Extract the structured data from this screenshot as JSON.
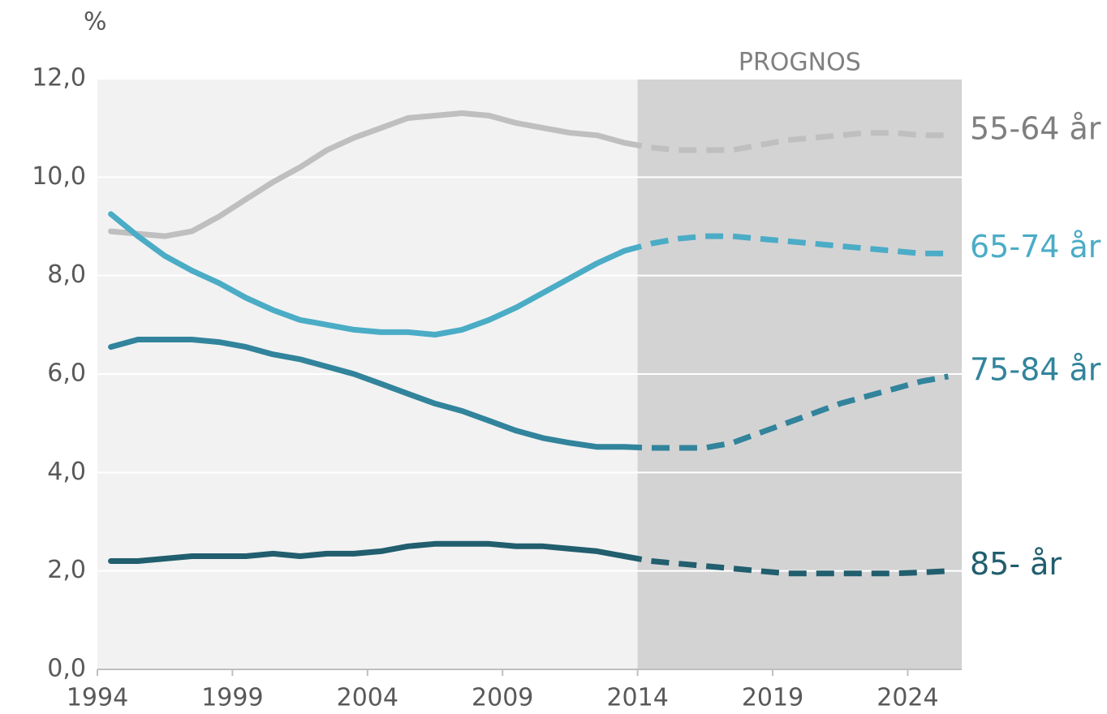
{
  "chart_data": {
    "type": "line",
    "title": "%",
    "annotation": "PROGNOS",
    "prognos_start": 2014,
    "prognos_color": "#d4d3d4",
    "plot_background": "#f2f2f2",
    "grid": true,
    "x": [
      1994.5,
      1995.5,
      1996.5,
      1997.5,
      1998.5,
      1999.5,
      2000.5,
      2001.5,
      2002.5,
      2003.5,
      2004.5,
      2005.5,
      2006.5,
      2007.5,
      2008.5,
      2009.5,
      2010.5,
      2011.5,
      2012.5,
      2013.5,
      2014.5,
      2015.5,
      2016.5,
      2017.5,
      2018.5,
      2019.5,
      2020.5,
      2021.5,
      2022.5,
      2023.5,
      2024.5,
      2025.5
    ],
    "xlim": [
      1994,
      2026
    ],
    "xticks": [
      1994,
      1999,
      2004,
      2009,
      2014,
      2019,
      2024
    ],
    "ylim": [
      0,
      12
    ],
    "yticks": [
      {
        "value": 0,
        "label": "0,0"
      },
      {
        "value": 2,
        "label": "2,0"
      },
      {
        "value": 4,
        "label": "4,0"
      },
      {
        "value": 6,
        "label": "6,0"
      },
      {
        "value": 8,
        "label": "8,0"
      },
      {
        "value": 10,
        "label": "10,0"
      },
      {
        "value": 12,
        "label": "12,0"
      }
    ],
    "series": [
      {
        "name": "55-64 år",
        "color": "#bfbfbf",
        "label_color": "#7f7f7f",
        "values": [
          8.9,
          8.85,
          8.8,
          8.9,
          9.2,
          9.55,
          9.9,
          10.2,
          10.55,
          10.8,
          11.0,
          11.2,
          11.25,
          11.3,
          11.25,
          11.1,
          11.0,
          10.9,
          10.85,
          10.7,
          10.6,
          10.55,
          10.55,
          10.55,
          10.65,
          10.75,
          10.8,
          10.85,
          10.9,
          10.9,
          10.85,
          10.85
        ]
      },
      {
        "name": "65-74 år",
        "color": "#4bacc6",
        "label_color": "#4bacc6",
        "values": [
          9.25,
          8.8,
          8.4,
          8.1,
          7.85,
          7.55,
          7.3,
          7.1,
          7.0,
          6.9,
          6.85,
          6.85,
          6.8,
          6.9,
          7.1,
          7.35,
          7.65,
          7.95,
          8.25,
          8.5,
          8.65,
          8.75,
          8.8,
          8.8,
          8.75,
          8.7,
          8.65,
          8.6,
          8.55,
          8.5,
          8.45,
          8.45
        ]
      },
      {
        "name": "75-84 år",
        "color": "#31849b",
        "label_color": "#31849b",
        "values": [
          6.55,
          6.7,
          6.7,
          6.7,
          6.65,
          6.55,
          6.4,
          6.3,
          6.15,
          6.0,
          5.8,
          5.6,
          5.4,
          5.25,
          5.05,
          4.85,
          4.7,
          4.6,
          4.52,
          4.52,
          4.5,
          4.5,
          4.5,
          4.6,
          4.8,
          5.0,
          5.2,
          5.4,
          5.55,
          5.7,
          5.85,
          5.95
        ]
      },
      {
        "name": "85- år",
        "color": "#215e6e",
        "label_color": "#215e6e",
        "values": [
          2.2,
          2.2,
          2.25,
          2.3,
          2.3,
          2.3,
          2.35,
          2.3,
          2.35,
          2.35,
          2.4,
          2.5,
          2.55,
          2.55,
          2.55,
          2.5,
          2.5,
          2.45,
          2.4,
          2.3,
          2.2,
          2.15,
          2.1,
          2.05,
          2.0,
          1.95,
          1.95,
          1.95,
          1.95,
          1.95,
          1.97,
          2.0
        ]
      }
    ]
  }
}
